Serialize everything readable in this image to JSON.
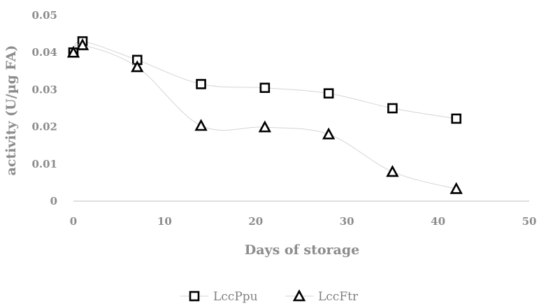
{
  "chart_data": {
    "type": "scatter",
    "xlabel": "Days of storage",
    "ylabel": "activity (U/µg FA)",
    "xlim": [
      0,
      50
    ],
    "ylim": [
      0,
      0.05
    ],
    "xticks": [
      "0",
      "10",
      "20",
      "30",
      "40",
      "50"
    ],
    "yticks": [
      "0",
      "0.01",
      "0.02",
      "0.03",
      "0.04",
      "0.05"
    ],
    "grid": false,
    "legend_position": "bottom",
    "series": [
      {
        "name": "LccPpu",
        "marker": "square",
        "x": [
          0,
          1,
          7,
          14,
          21,
          28,
          35,
          42
        ],
        "y": [
          0.04,
          0.043,
          0.038,
          0.0315,
          0.0305,
          0.029,
          0.025,
          0.0222
        ]
      },
      {
        "name": "LccFtr",
        "marker": "triangle",
        "x": [
          0,
          1,
          7,
          14,
          21,
          28,
          35,
          42
        ],
        "y": [
          0.04,
          0.042,
          0.0361,
          0.0203,
          0.0199,
          0.018,
          0.0079,
          0.0033
        ]
      }
    ],
    "colors": {
      "marker_stroke": "#000000",
      "line": "#d4d4d4",
      "axis": "#bfbfbf",
      "text": "#8c8c8c"
    }
  }
}
